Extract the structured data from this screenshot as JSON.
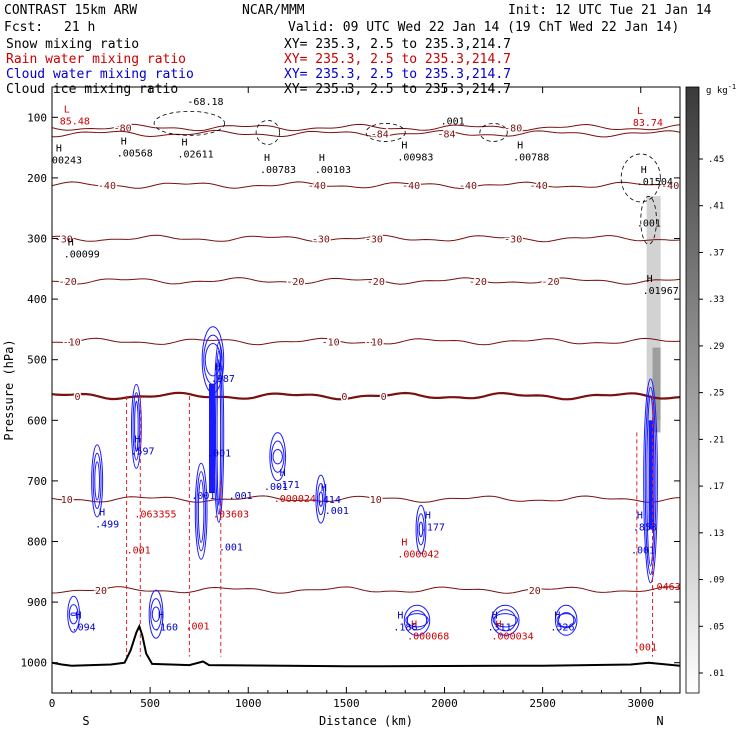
{
  "header": {
    "title": "CONTRAST 15km ARW",
    "org": "NCAR/MMM",
    "init": "Init: 12 UTC Tue 21 Jan 14",
    "fcst_label": "Fcst:",
    "fcst_value": "21 h",
    "valid": "Valid: 09 UTC Wed 22 Jan 14 (19 ChT Wed 22 Jan 14)"
  },
  "legend": [
    {
      "name": "Snow mixing ratio",
      "xy": "XY= 235.3,  2.5 to 235.3,214.7",
      "color": "#000000"
    },
    {
      "name": "Rain water mixing ratio",
      "xy": "XY= 235.3,  2.5 to 235.3,214.7",
      "color": "#cc0000"
    },
    {
      "name": "Cloud water mixing ratio",
      "xy": "XY= 235.3,  2.5 to 235.3,214.7",
      "color": "#0000cc"
    },
    {
      "name": "Cloud ice mixing ratio",
      "xy": "XY= 235.3,  2.5 to 235.3,214.7",
      "color": "#000000"
    }
  ],
  "chart_data": {
    "type": "contour",
    "xlabel": "Distance (km)",
    "ylabel": "Pressure (hPa)",
    "xlim": [
      0,
      3200
    ],
    "ylim": [
      1050,
      50
    ],
    "x_ticks": [
      0,
      500,
      1000,
      1500,
      2000,
      2500,
      3000
    ],
    "y_ticks": [
      100,
      200,
      300,
      400,
      500,
      600,
      700,
      800,
      900,
      1000
    ],
    "endpoints": {
      "left": "S",
      "right": "N"
    },
    "colorbar": {
      "unit": "g kg",
      "unit_exp": "-1",
      "levels": [
        ".45",
        ".41",
        ".37",
        ".33",
        ".29",
        ".25",
        ".21",
        ".17",
        ".13",
        ".09",
        ".05",
        ".01"
      ]
    },
    "isotherms": [
      {
        "value": -80,
        "p": 117,
        "labels": [
          {
            "x": 360,
            "text": "-80"
          },
          {
            "x": 2350,
            "text": "-80"
          }
        ]
      },
      {
        "value": -84,
        "p": 127,
        "labels": [
          {
            "x": 1670,
            "text": "-84"
          },
          {
            "x": 2010,
            "text": "-84"
          }
        ]
      },
      {
        "value": -40,
        "p": 212,
        "labels": [
          {
            "x": 280,
            "text": "-40"
          },
          {
            "x": 1350,
            "text": "-40"
          },
          {
            "x": 1830,
            "text": "-40"
          },
          {
            "x": 2120,
            "text": "-40"
          },
          {
            "x": 2480,
            "text": "-40"
          },
          {
            "x": 3150,
            "text": "-40"
          }
        ]
      },
      {
        "value": -30,
        "p": 300,
        "labels": [
          {
            "x": 60,
            "text": "-30"
          },
          {
            "x": 1370,
            "text": "-30"
          },
          {
            "x": 1640,
            "text": "-30"
          },
          {
            "x": 2350,
            "text": "-30"
          }
        ]
      },
      {
        "value": -20,
        "p": 370,
        "labels": [
          {
            "x": 80,
            "text": "-20"
          },
          {
            "x": 1240,
            "text": "-20"
          },
          {
            "x": 1650,
            "text": "-20"
          },
          {
            "x": 2170,
            "text": "-20"
          },
          {
            "x": 2540,
            "text": "-20"
          }
        ]
      },
      {
        "value": -10,
        "p": 470,
        "labels": [
          {
            "x": 100,
            "text": "-10"
          },
          {
            "x": 1420,
            "text": "-10"
          },
          {
            "x": 1640,
            "text": "-10"
          }
        ]
      },
      {
        "value": 0,
        "p": 560,
        "labels": [
          {
            "x": 130,
            "text": "0"
          },
          {
            "x": 1490,
            "text": "0"
          },
          {
            "x": 1690,
            "text": "0"
          }
        ]
      },
      {
        "value": 10,
        "p": 730,
        "labels": [
          {
            "x": 75,
            "text": "10"
          },
          {
            "x": 1650,
            "text": "10"
          }
        ]
      },
      {
        "value": 20,
        "p": 880,
        "labels": [
          {
            "x": 250,
            "text": "20"
          },
          {
            "x": 2460,
            "text": "20"
          }
        ]
      }
    ],
    "extrema": [
      {
        "type": "L",
        "x": 60,
        "p": 95,
        "value": "85.48",
        "color": "#cc0000"
      },
      {
        "type": "H",
        "x": 20,
        "p": 160,
        "value": "00243",
        "color": "#000000"
      },
      {
        "type": "H",
        "x": 350,
        "p": 148,
        "value": ".00568",
        "color": "#000000"
      },
      {
        "type": "H",
        "x": 660,
        "p": 150,
        "value": ".02611",
        "color": "#000000"
      },
      {
        "type": "H",
        "x": 1080,
        "p": 175,
        "value": ".00783",
        "color": "#000000"
      },
      {
        "type": "H",
        "x": 1360,
        "p": 175,
        "value": ".00103",
        "color": "#000000"
      },
      {
        "type": "H",
        "x": 1780,
        "p": 155,
        "value": ".00983",
        "color": "#000000"
      },
      {
        "type": "H",
        "x": 2370,
        "p": 155,
        "value": ".00788",
        "color": "#000000"
      },
      {
        "type": "L",
        "x": 2980,
        "p": 98,
        "value": "83.74",
        "color": "#cc0000"
      },
      {
        "type": "H",
        "x": 3000,
        "p": 195,
        "value": ".01504",
        "color": "#000000"
      },
      {
        "type": "H",
        "x": 80,
        "p": 315,
        "value": ".00099",
        "color": "#000000"
      },
      {
        "type": "H",
        "x": 3030,
        "p": 375,
        "value": ".01967",
        "color": "#000000"
      },
      {
        "type": "H",
        "x": 830,
        "p": 520,
        "value": ".987",
        "color": "#0000cc"
      },
      {
        "type": "H",
        "x": 420,
        "p": 640,
        "value": ".597",
        "color": "#0000cc"
      },
      {
        "type": "H",
        "x": 1160,
        "p": 695,
        "value": ".171",
        "color": "#0000cc"
      },
      {
        "type": "H",
        "x": 1370,
        "p": 720,
        "value": ".414",
        "color": "#0000cc"
      },
      {
        "type": "H",
        "x": 240,
        "p": 760,
        "value": ".499",
        "color": "#0000cc"
      },
      {
        "type": "H",
        "x": 1900,
        "p": 765,
        "value": ".177",
        "color": "#0000cc"
      },
      {
        "type": "H",
        "x": 2980,
        "p": 765,
        "value": ".853",
        "color": "#0000cc"
      },
      {
        "type": "H",
        "x": 1780,
        "p": 810,
        "value": ".000042",
        "color": "#cc0000"
      },
      {
        "type": "H",
        "x": 1830,
        "p": 945,
        "value": ".000068",
        "color": "#cc0000"
      },
      {
        "type": "H",
        "x": 2260,
        "p": 945,
        "value": ".000034",
        "color": "#cc0000"
      },
      {
        "type": "H",
        "x": 1760,
        "p": 930,
        "value": ".186",
        "color": "#0000cc"
      },
      {
        "type": "H",
        "x": 2240,
        "p": 930,
        "value": ".311",
        "color": "#0000cc"
      },
      {
        "type": "H",
        "x": 2560,
        "p": 930,
        "value": ".526",
        "color": "#0000cc"
      },
      {
        "type": "H",
        "x": 540,
        "p": 930,
        "value": ".160",
        "color": "#0000cc"
      },
      {
        "type": "H",
        "x": 120,
        "p": 930,
        "value": ".094",
        "color": "#0000cc"
      }
    ],
    "annotations": [
      {
        "x": 690,
        "p": 80,
        "text": "-68.18",
        "color": "#000000"
      },
      {
        "x": 1980,
        "p": 112,
        "text": ".001",
        "color": "#000000"
      },
      {
        "x": 2980,
        "p": 280,
        "text": ".001",
        "color": "#000000"
      },
      {
        "x": 420,
        "p": 760,
        "text": ".063355",
        "color": "#cc0000"
      },
      {
        "x": 790,
        "p": 660,
        "text": ".001",
        "color": "#0000cc"
      },
      {
        "x": 710,
        "p": 730,
        "text": ".001",
        "color": "#0000cc"
      },
      {
        "x": 900,
        "p": 730,
        "text": ".001",
        "color": "#0000cc"
      },
      {
        "x": 820,
        "p": 760,
        "text": ".03603",
        "color": "#cc0000"
      },
      {
        "x": 850,
        "p": 815,
        "text": ".001",
        "color": "#0000cc"
      },
      {
        "x": 1130,
        "p": 735,
        "text": ".000024",
        "color": "#cc0000"
      },
      {
        "x": 1080,
        "p": 715,
        "text": ".001",
        "color": "#0000cc"
      },
      {
        "x": 1390,
        "p": 755,
        "text": ".001",
        "color": "#0000cc"
      },
      {
        "x": 380,
        "p": 820,
        "text": ".001",
        "color": "#cc0000"
      },
      {
        "x": 680,
        "p": 945,
        "text": ".001",
        "color": "#cc0000"
      },
      {
        "x": 2950,
        "p": 820,
        "text": ".001",
        "color": "#0000cc"
      },
      {
        "x": 3050,
        "p": 880,
        "text": ".0463",
        "color": "#cc0000"
      },
      {
        "x": 2960,
        "p": 980,
        "text": ".001",
        "color": "#cc0000"
      }
    ],
    "terrain": [
      {
        "x": 0,
        "p": 1000
      },
      {
        "x": 50,
        "p": 1003
      },
      {
        "x": 100,
        "p": 1005
      },
      {
        "x": 300,
        "p": 1003
      },
      {
        "x": 370,
        "p": 1000
      },
      {
        "x": 400,
        "p": 980
      },
      {
        "x": 430,
        "p": 950
      },
      {
        "x": 445,
        "p": 940
      },
      {
        "x": 460,
        "p": 955
      },
      {
        "x": 480,
        "p": 985
      },
      {
        "x": 510,
        "p": 1002
      },
      {
        "x": 700,
        "p": 1004
      },
      {
        "x": 770,
        "p": 998
      },
      {
        "x": 800,
        "p": 1004
      },
      {
        "x": 1500,
        "p": 1006
      },
      {
        "x": 2500,
        "p": 1005
      },
      {
        "x": 2950,
        "p": 1003
      },
      {
        "x": 3040,
        "p": 1000
      },
      {
        "x": 3200,
        "p": 1005
      }
    ]
  }
}
